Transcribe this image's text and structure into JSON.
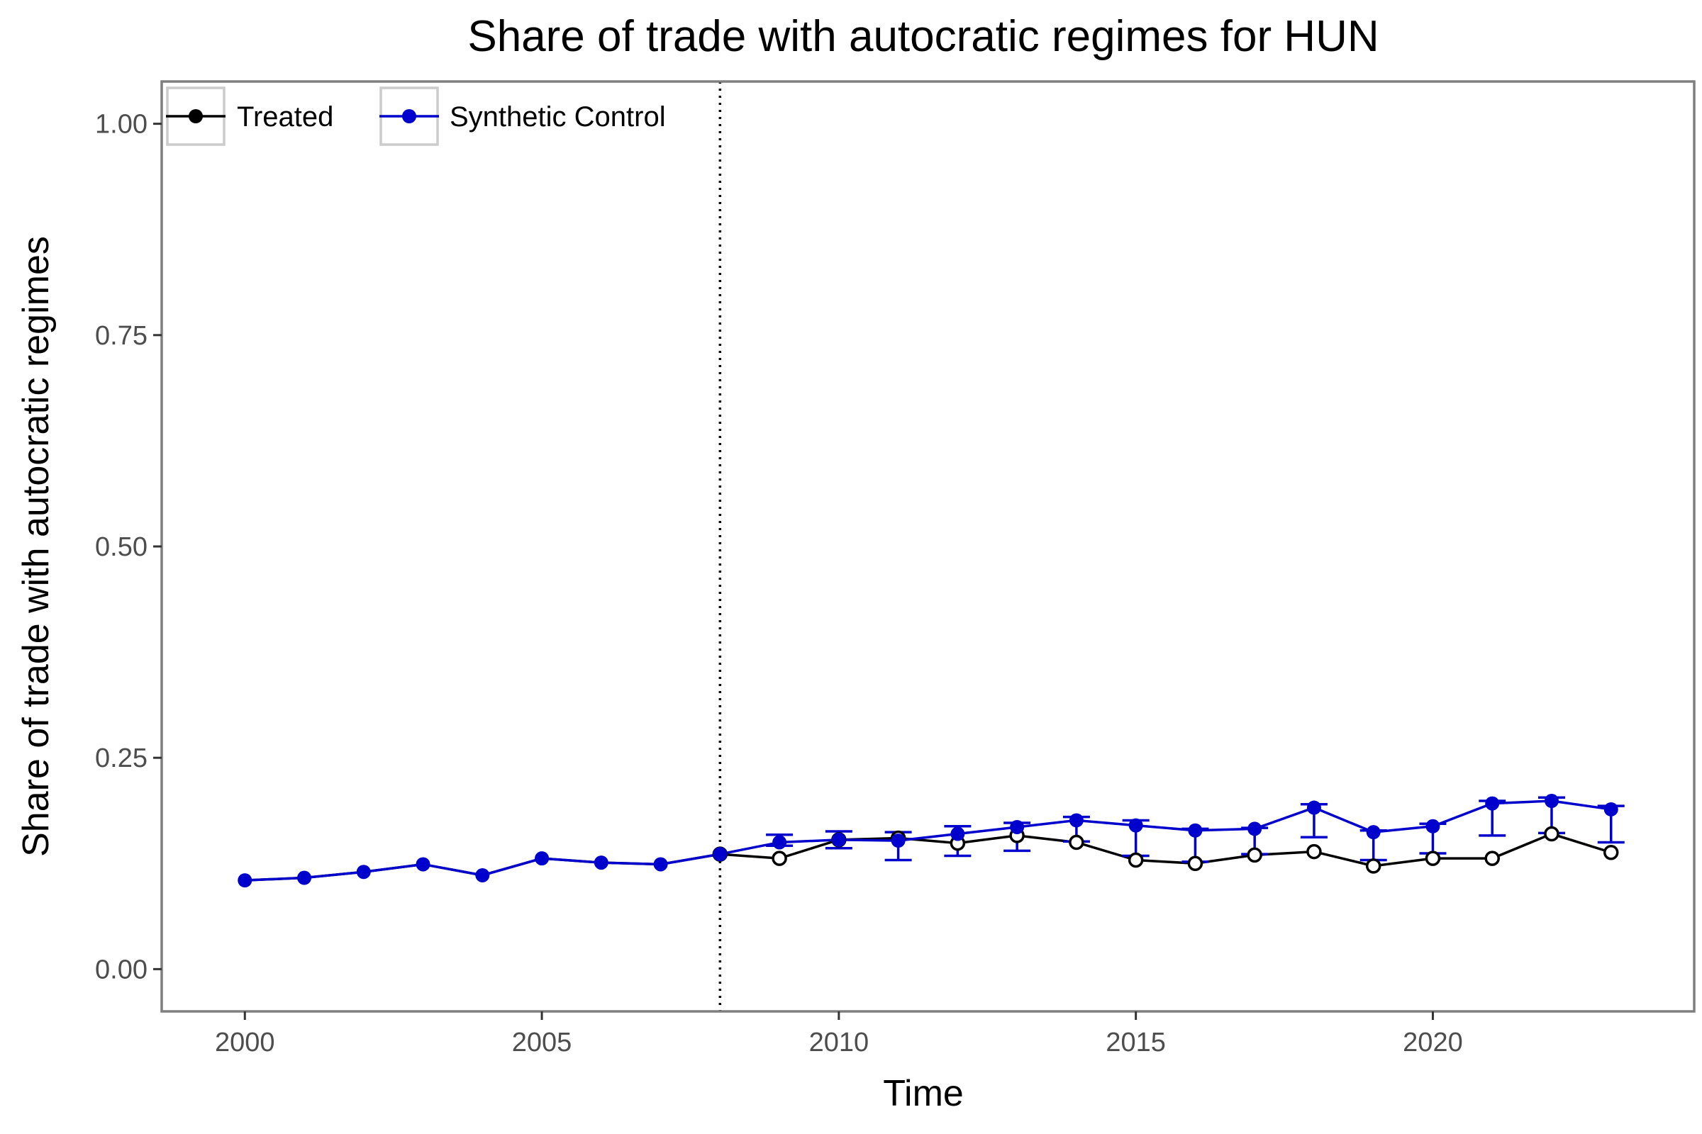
{
  "chart_data": {
    "type": "line",
    "title": "Share of trade with autocratic regimes for HUN",
    "xlabel": "Time",
    "ylabel": "Share of trade with autocratic regimes",
    "xlim": [
      1998.6,
      2024.4
    ],
    "ylim": [
      -0.05,
      1.05
    ],
    "x_ticks": [
      2000,
      2005,
      2010,
      2015,
      2020
    ],
    "x_tick_labels": [
      "2000",
      "2005",
      "2010",
      "2015",
      "2020"
    ],
    "y_ticks": [
      0,
      0.25,
      0.5,
      0.75,
      1.0
    ],
    "y_tick_labels": [
      "0.00",
      "0.25",
      "0.50",
      "0.75",
      "1.00"
    ],
    "treatment_year": 2008,
    "grid": false,
    "legend_position": "top-left",
    "x": [
      2000,
      2001,
      2002,
      2003,
      2004,
      2005,
      2006,
      2007,
      2008,
      2009,
      2010,
      2011,
      2012,
      2013,
      2014,
      2015,
      2016,
      2017,
      2018,
      2019,
      2020,
      2021,
      2022,
      2023
    ],
    "series": [
      {
        "name": "Treated",
        "color": "#000000",
        "values": [
          0.105,
          0.108,
          0.115,
          0.124,
          0.111,
          0.131,
          0.126,
          0.124,
          0.136,
          0.131,
          0.153,
          0.155,
          0.149,
          0.158,
          0.15,
          0.129,
          0.125,
          0.135,
          0.139,
          0.122,
          0.131,
          0.131,
          0.16,
          0.138
        ]
      },
      {
        "name": "Synthetic Control",
        "color": "#0000cd",
        "values": [
          0.105,
          0.108,
          0.115,
          0.124,
          0.111,
          0.131,
          0.126,
          0.124,
          0.136,
          0.15,
          0.153,
          0.152,
          0.16,
          0.168,
          0.176,
          0.17,
          0.164,
          0.166,
          0.191,
          0.162,
          0.169,
          0.196,
          0.199,
          0.189
        ],
        "error_upper": [
          null,
          null,
          null,
          null,
          null,
          null,
          null,
          null,
          null,
          0.159,
          0.163,
          0.162,
          0.169,
          0.173,
          0.18,
          0.176,
          0.166,
          0.167,
          0.195,
          0.164,
          0.172,
          0.199,
          0.203,
          0.193
        ],
        "error_lower": [
          null,
          null,
          null,
          null,
          null,
          null,
          null,
          null,
          null,
          0.146,
          0.143,
          0.129,
          0.134,
          0.14,
          0.151,
          0.134,
          0.127,
          0.136,
          0.156,
          0.129,
          0.137,
          0.158,
          0.161,
          0.15
        ]
      }
    ]
  }
}
